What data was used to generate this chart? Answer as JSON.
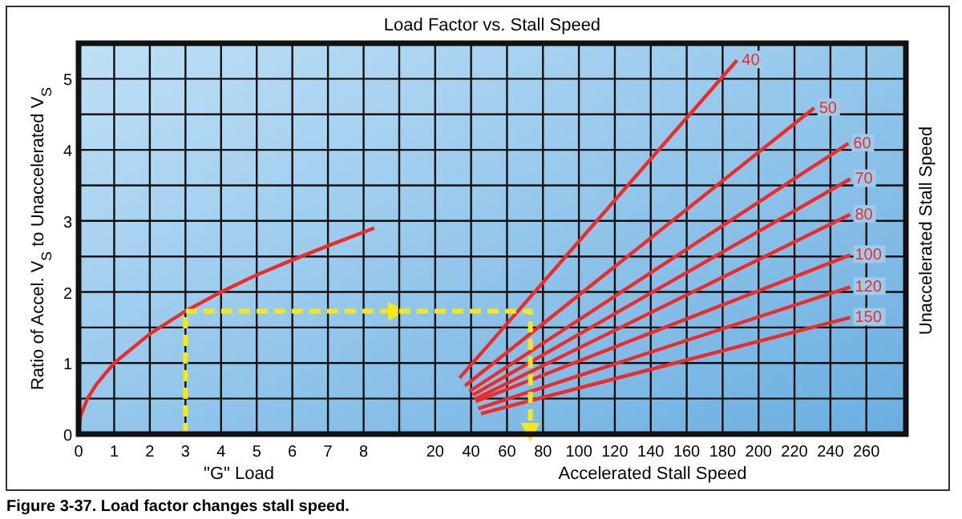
{
  "chart_data": [
    {
      "type": "line",
      "xlabel": "\"G\" Load",
      "ylabel": "Ratio of Accel. V$_{S}$ to Unaccelerated V$_{S}$",
      "annotations": [
        "Figure 3-37. Load factor changes stall speed."
      ],
      "xlim": [
        0,
        9
      ],
      "xticks": [
        0,
        1,
        2,
        3,
        4,
        5,
        6,
        7,
        8
      ],
      "ylim": [
        0,
        5.5
      ],
      "yticks": [
        0,
        {
          "value": 0.5,
          "label": null
        },
        1,
        {
          "value": 1.5,
          "label": null
        },
        2,
        {
          "value": 2.5,
          "label": null
        },
        3,
        {
          "value": 3.5,
          "label": null
        },
        4,
        {
          "value": 4.5,
          "label": null
        },
        5
      ],
      "grid": true,
      "series": [
        {
          "color": "#ee2b2b",
          "x": [
            0,
            0.05,
            0.25,
            0.5,
            1,
            2,
            3,
            4,
            5,
            6,
            7,
            8.3
          ],
          "values": [
            0,
            0.25,
            0.5,
            0.7,
            1.0,
            1.41,
            1.73,
            2.0,
            2.24,
            2.45,
            2.65,
            2.9
          ]
        },
        {
          "color": "#f5e71a",
          "line_style": "dashed",
          "x": [
            3,
            3,
            9
          ],
          "values": [
            0,
            1.73,
            1.73
          ]
        }
      ]
    },
    {
      "type": "line",
      "title": "Load Factor vs. Stall Speed",
      "xlabel": "Accelerated Stall Speed",
      "y2label": "Unaccelerated Stall Speed",
      "tick_labels": "x",
      "xlim": [
        0,
        282
      ],
      "xticks": [
        {
          "value": 0,
          "label": null
        },
        20,
        40,
        60,
        80,
        100,
        120,
        140,
        160,
        180,
        200,
        220,
        240,
        260
      ],
      "ylim": [
        0,
        5.5
      ],
      "yticks": [
        0,
        0.5,
        1,
        1.5,
        2,
        2.5,
        3,
        3.5,
        4,
        4.5,
        5
      ],
      "grid": true,
      "series": [
        {
          "name": "40",
          "color": "#ee2b2b",
          "x": [
            33.6,
            188
          ],
          "values": [
            0.79,
            5.26
          ]
        },
        {
          "name": "50",
          "color": "#ee2b2b",
          "x": [
            36.6,
            231
          ],
          "values": [
            0.68,
            4.59
          ]
        },
        {
          "name": "60",
          "color": "#ee2b2b",
          "x": [
            39,
            250
          ],
          "values": [
            0.6,
            4.09
          ]
        },
        {
          "name": "70",
          "color": "#ee2b2b",
          "x": [
            41,
            251
          ],
          "values": [
            0.55,
            3.59
          ]
        },
        {
          "name": "80",
          "color": "#ee2b2b",
          "x": [
            42,
            251
          ],
          "values": [
            0.49,
            3.09
          ]
        },
        {
          "name": "100",
          "color": "#ee2b2b",
          "x": [
            42.6,
            251
          ],
          "values": [
            0.46,
            2.52
          ]
        },
        {
          "name": "120",
          "color": "#ee2b2b",
          "x": [
            44,
            251
          ],
          "values": [
            0.36,
            2.07
          ]
        },
        {
          "name": "150",
          "color": "#ee2b2b",
          "x": [
            45.5,
            251
          ],
          "values": [
            0.29,
            1.64
          ]
        },
        {
          "color": "#f5e71a",
          "line_style": "dashed",
          "x": [
            0,
            73,
            73
          ],
          "values": [
            1.73,
            1.73,
            0
          ]
        }
      ]
    }
  ]
}
